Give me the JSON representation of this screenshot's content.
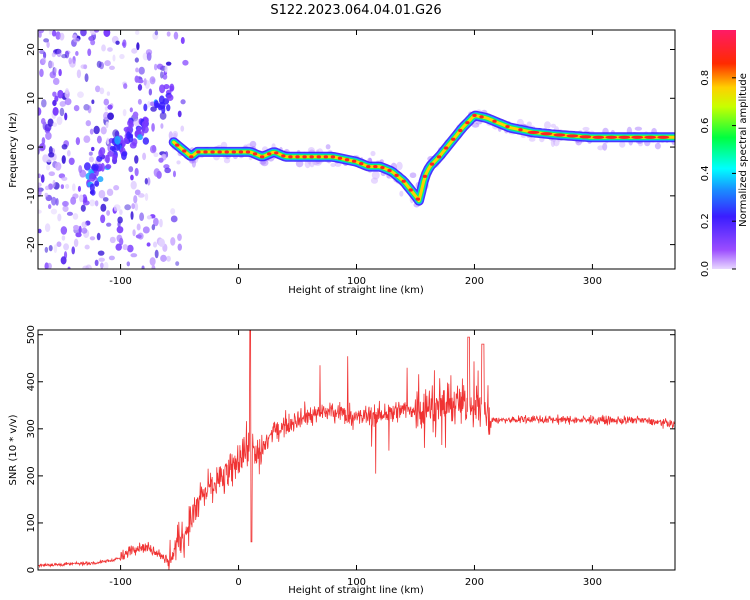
{
  "title": "S122.2023.064.04.01.G26",
  "colors": {
    "snr_line": "#f03333",
    "spectrogram_low": "#7b3bff",
    "spectrogram_high": "#ff2222"
  },
  "chart_data": [
    {
      "type": "heatmap",
      "title": "S122.2023.064.04.01.G26",
      "xlabel": "Height of straight line (km)",
      "ylabel": "Frequency (Hz)",
      "xlim": [
        -170,
        370
      ],
      "ylim": [
        -25,
        24
      ],
      "xticks": [
        -100,
        0,
        100,
        200,
        300
      ],
      "yticks": [
        -20,
        -10,
        0,
        10,
        20
      ],
      "colorbar": {
        "label": "Normalized spectral amplitude",
        "range": [
          0.0,
          1.0
        ],
        "ticks": [
          0.0,
          0.2,
          0.4,
          0.6,
          0.8
        ],
        "colormap": "rainbow (magenta-purple-blue-cyan-green-yellow-red)"
      },
      "ridge": {
        "x": [
          -55,
          -45,
          -40,
          -35,
          -30,
          -25,
          -20,
          -10,
          0,
          10,
          20,
          30,
          40,
          50,
          60,
          80,
          100,
          110,
          120,
          130,
          140,
          150,
          153,
          155,
          158,
          162,
          170,
          180,
          190,
          200,
          210,
          220,
          230,
          250,
          270,
          300,
          330,
          370
        ],
        "y": [
          1,
          -1,
          -2,
          -1,
          -1,
          -1,
          -1,
          -1,
          -1,
          -1,
          -2,
          -1,
          -2,
          -2,
          -2,
          -2,
          -3,
          -4,
          -4,
          -5,
          -7,
          -10,
          -11,
          -9,
          -6,
          -4,
          -2,
          1,
          4,
          6.5,
          6,
          5,
          4,
          3,
          2.5,
          2,
          2,
          2
        ]
      },
      "noise_region_x": [
        -170,
        -55
      ]
    },
    {
      "type": "line",
      "xlabel": "Height of straight line (km)",
      "ylabel": "SNR (10 * v/v)",
      "xlim": [
        -170,
        370
      ],
      "ylim": [
        0,
        510
      ],
      "xticks": [
        -100,
        0,
        100,
        200,
        300
      ],
      "yticks": [
        0,
        100,
        200,
        300,
        400,
        500
      ],
      "series": [
        {
          "x": [
            -170,
            -150,
            -120,
            -100,
            -90,
            -80,
            -70,
            -60,
            -50,
            -40,
            -30,
            -20,
            -10,
            0,
            5,
            10,
            15,
            20,
            30,
            40,
            50,
            60,
            80,
            100,
            120,
            140,
            160,
            180,
            200,
            210,
            215,
            220,
            250,
            300,
            340,
            370
          ],
          "values": [
            10,
            12,
            15,
            25,
            45,
            50,
            40,
            20,
            60,
            110,
            160,
            190,
            200,
            230,
            260,
            250,
            230,
            260,
            295,
            310,
            325,
            330,
            335,
            325,
            330,
            340,
            345,
            355,
            350,
            330,
            320,
            318,
            320,
            318,
            318,
            310
          ]
        }
      ]
    }
  ]
}
